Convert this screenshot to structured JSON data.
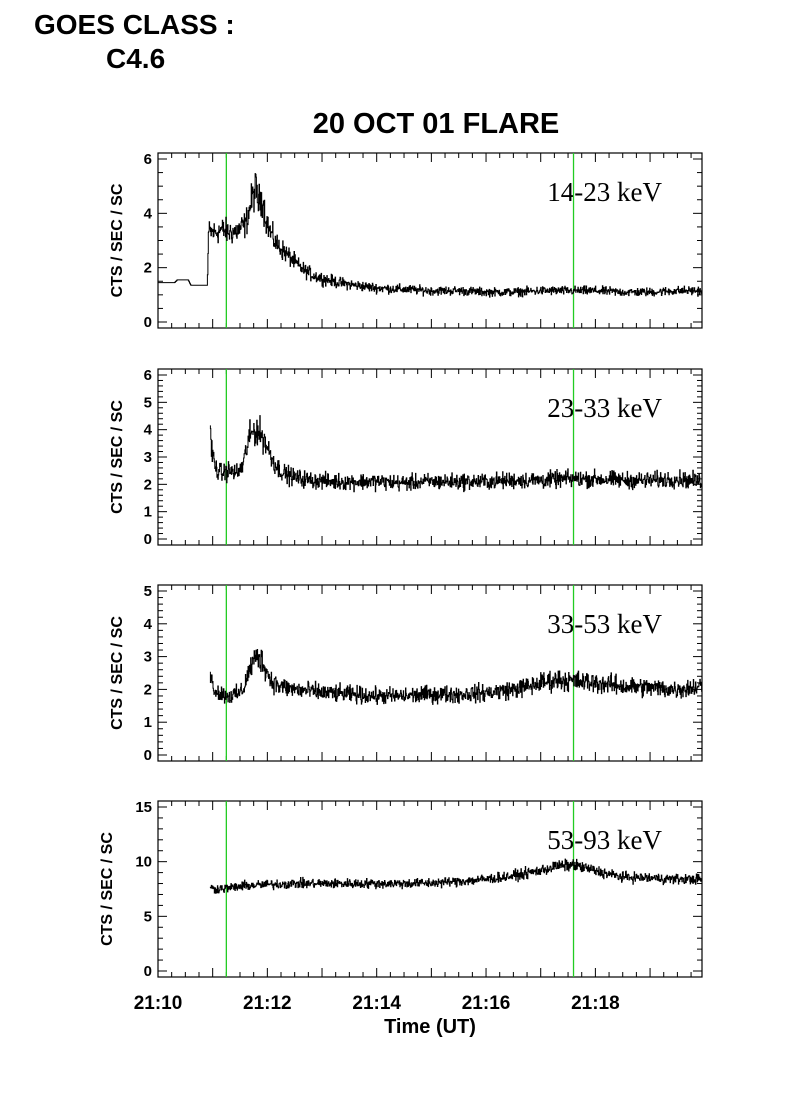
{
  "header": {
    "goes_label_line1": "GOES CLASS :",
    "goes_label_line2": "C4.6"
  },
  "chart_data": {
    "type": "line",
    "title": "20 OCT 01 FLARE",
    "xlabel": "Time (UT)",
    "x_unit": "minutes after 21:00 UT",
    "xlim": [
      10.0,
      19.95
    ],
    "x_ticks": [
      "21:10",
      "21:12",
      "21:14",
      "21:16",
      "21:18"
    ],
    "x_tick_values": [
      10,
      12,
      14,
      16,
      18
    ],
    "vertical_markers": {
      "color": "#22cc22",
      "times": [
        "21:11.25",
        "21:17.6"
      ],
      "x": [
        11.25,
        17.6
      ]
    },
    "series_color": "#000000",
    "panels": [
      {
        "label": "14-23 keV",
        "ylabel": "CTS / SEC / SC",
        "ylim": [
          0,
          6
        ],
        "yticks": [
          0,
          2,
          4,
          6
        ],
        "x": [
          10.0,
          10.3,
          10.35,
          10.55,
          10.6,
          10.9,
          10.92,
          11.05,
          11.15,
          11.3,
          11.45,
          11.6,
          11.7,
          11.78,
          11.84,
          11.9,
          11.97,
          12.05,
          12.15,
          12.3,
          12.45,
          12.6,
          12.8,
          13.0,
          13.3,
          13.6,
          14.0,
          14.5,
          15.0,
          15.5,
          16.0,
          16.5,
          17.0,
          17.5,
          18.0,
          18.5,
          19.0,
          19.5,
          19.95
        ],
        "y": [
          1.45,
          1.45,
          1.55,
          1.55,
          1.35,
          1.35,
          3.3,
          3.3,
          3.4,
          3.3,
          3.35,
          3.6,
          4.4,
          4.9,
          4.4,
          4.6,
          3.8,
          3.3,
          2.9,
          2.6,
          2.3,
          2.0,
          1.75,
          1.6,
          1.45,
          1.35,
          1.25,
          1.2,
          1.15,
          1.15,
          1.1,
          1.1,
          1.15,
          1.15,
          1.15,
          1.1,
          1.1,
          1.15,
          1.15
        ]
      },
      {
        "label": "23-33 keV",
        "ylabel": "CTS / SEC / SC",
        "ylim": [
          0,
          6
        ],
        "yticks": [
          0,
          1,
          2,
          3,
          4,
          5,
          6
        ],
        "x": [
          10.95,
          11.0,
          11.05,
          11.15,
          11.3,
          11.45,
          11.55,
          11.65,
          11.75,
          11.85,
          11.95,
          12.05,
          12.15,
          12.3,
          12.5,
          12.8,
          13.2,
          13.6,
          14.0,
          14.5,
          15.0,
          15.5,
          16.0,
          16.5,
          17.0,
          17.5,
          18.0,
          18.5,
          19.0,
          19.5,
          19.95
        ],
        "y": [
          3.8,
          3.0,
          2.6,
          2.4,
          2.5,
          2.4,
          2.7,
          3.6,
          4.0,
          3.9,
          3.6,
          3.1,
          2.7,
          2.4,
          2.25,
          2.15,
          2.1,
          2.1,
          2.1,
          2.05,
          2.1,
          2.1,
          2.1,
          2.15,
          2.15,
          2.2,
          2.2,
          2.15,
          2.15,
          2.2,
          2.1
        ]
      },
      {
        "label": "33-53 keV",
        "ylabel": "CTS / SEC / SC",
        "ylim": [
          0,
          5
        ],
        "yticks": [
          0,
          1,
          2,
          3,
          4,
          5
        ],
        "x": [
          10.95,
          11.0,
          11.1,
          11.3,
          11.45,
          11.55,
          11.65,
          11.75,
          11.85,
          11.95,
          12.05,
          12.2,
          12.5,
          13.0,
          13.5,
          14.0,
          14.5,
          15.0,
          15.5,
          16.0,
          16.5,
          16.8,
          17.0,
          17.3,
          17.6,
          18.0,
          18.5,
          19.0,
          19.5,
          19.95
        ],
        "y": [
          2.5,
          2.1,
          1.9,
          1.8,
          1.85,
          2.0,
          2.5,
          2.9,
          3.0,
          2.7,
          2.3,
          2.1,
          2.0,
          1.9,
          1.85,
          1.8,
          1.8,
          1.85,
          1.85,
          1.9,
          2.0,
          2.1,
          2.2,
          2.3,
          2.25,
          2.2,
          2.1,
          2.05,
          2.0,
          2.1
        ]
      },
      {
        "label": "53-93 keV",
        "ylabel": "CTS / SEC / SC",
        "ylim": [
          0,
          15
        ],
        "yticks": [
          0,
          5,
          10,
          15
        ],
        "x": [
          10.95,
          11.0,
          11.3,
          11.6,
          12.0,
          12.5,
          13.0,
          13.5,
          14.0,
          14.5,
          15.0,
          15.5,
          16.0,
          16.5,
          17.0,
          17.3,
          17.6,
          17.9,
          18.2,
          18.5,
          19.0,
          19.5,
          19.95
        ],
        "y": [
          7.8,
          7.5,
          7.6,
          7.8,
          7.9,
          8.0,
          8.0,
          8.0,
          8.0,
          8.0,
          8.05,
          8.2,
          8.4,
          8.7,
          9.2,
          9.6,
          9.7,
          9.3,
          8.9,
          8.6,
          8.5,
          8.4,
          8.4
        ]
      }
    ]
  }
}
